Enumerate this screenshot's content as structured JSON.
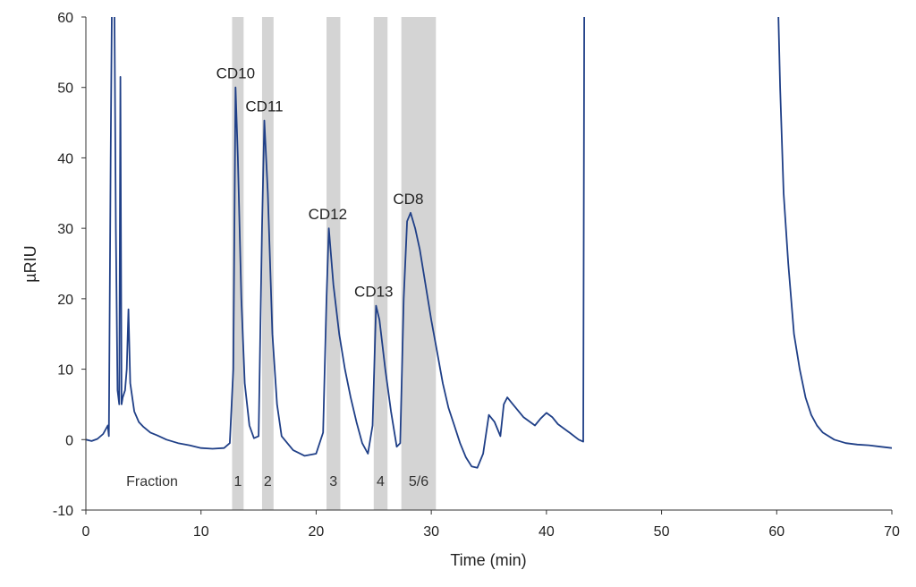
{
  "chart_data": {
    "type": "line",
    "title": "",
    "xlabel": "Time (min)",
    "ylabel": "µRIU",
    "xlim": [
      0,
      70
    ],
    "ylim": [
      -10,
      60
    ],
    "xticks": [
      0,
      10,
      20,
      30,
      40,
      50,
      60,
      70
    ],
    "yticks": [
      -10,
      0,
      10,
      20,
      30,
      40,
      50,
      60
    ],
    "grid": false,
    "series_color": "#1f3f87",
    "shade_color": "#d4d4d4",
    "fraction_caption": "Fraction",
    "fractions": [
      {
        "label": "1",
        "x_start": 12.7,
        "x_end": 13.7
      },
      {
        "label": "2",
        "x_start": 15.3,
        "x_end": 16.3
      },
      {
        "label": "3",
        "x_start": 20.9,
        "x_end": 22.1
      },
      {
        "label": "4",
        "x_start": 25.0,
        "x_end": 26.2
      },
      {
        "label": "5/6",
        "x_start": 27.4,
        "x_end": 30.4
      }
    ],
    "annotations": [
      {
        "text": "CD10",
        "x": 13.0,
        "y": 50.0
      },
      {
        "text": "CD11",
        "x": 15.5,
        "y": 45.3
      },
      {
        "text": "CD12",
        "x": 21.0,
        "y": 30.0
      },
      {
        "text": "CD13",
        "x": 25.0,
        "y": 19.0
      },
      {
        "text": "CD8",
        "x": 28.0,
        "y": 32.2
      }
    ],
    "series": [
      {
        "points": [
          [
            0.0,
            0.0
          ],
          [
            0.5,
            -0.2
          ],
          [
            1.0,
            0.1
          ],
          [
            1.5,
            0.8
          ],
          [
            1.9,
            2.0
          ],
          [
            2.0,
            0.5
          ],
          [
            2.15,
            40.0
          ],
          [
            2.3,
            70.0
          ],
          [
            2.45,
            70.0
          ],
          [
            2.6,
            30.0
          ],
          [
            2.75,
            7.0
          ],
          [
            2.9,
            5.0
          ],
          [
            3.0,
            51.5
          ],
          [
            3.1,
            5.0
          ],
          [
            3.2,
            6.0
          ],
          [
            3.4,
            7.0
          ],
          [
            3.55,
            10.0
          ],
          [
            3.7,
            18.5
          ],
          [
            3.85,
            8.0
          ],
          [
            4.2,
            4.0
          ],
          [
            4.6,
            2.5
          ],
          [
            5.0,
            1.8
          ],
          [
            5.6,
            1.0
          ],
          [
            6.2,
            0.6
          ],
          [
            7.0,
            0.0
          ],
          [
            8.0,
            -0.5
          ],
          [
            9.0,
            -0.8
          ],
          [
            10.0,
            -1.2
          ],
          [
            11.0,
            -1.3
          ],
          [
            12.0,
            -1.2
          ],
          [
            12.5,
            -0.5
          ],
          [
            12.8,
            10.0
          ],
          [
            13.0,
            50.0
          ],
          [
            13.2,
            40.0
          ],
          [
            13.5,
            20.0
          ],
          [
            13.8,
            8.0
          ],
          [
            14.2,
            2.0
          ],
          [
            14.6,
            0.2
          ],
          [
            15.0,
            0.5
          ],
          [
            15.3,
            30.0
          ],
          [
            15.5,
            45.3
          ],
          [
            15.8,
            35.0
          ],
          [
            16.2,
            15.0
          ],
          [
            16.6,
            5.0
          ],
          [
            17.0,
            0.5
          ],
          [
            18.0,
            -1.5
          ],
          [
            19.0,
            -2.3
          ],
          [
            20.0,
            -2.0
          ],
          [
            20.6,
            1.0
          ],
          [
            20.9,
            20.0
          ],
          [
            21.1,
            30.0
          ],
          [
            21.5,
            22.0
          ],
          [
            22.0,
            15.0
          ],
          [
            22.5,
            10.0
          ],
          [
            23.0,
            6.0
          ],
          [
            23.5,
            2.5
          ],
          [
            24.0,
            -0.5
          ],
          [
            24.5,
            -2.0
          ],
          [
            24.9,
            2.0
          ],
          [
            25.2,
            19.0
          ],
          [
            25.5,
            17.0
          ],
          [
            26.0,
            10.0
          ],
          [
            26.5,
            4.0
          ],
          [
            27.0,
            -1.0
          ],
          [
            27.3,
            -0.5
          ],
          [
            27.6,
            20.0
          ],
          [
            27.9,
            31.0
          ],
          [
            28.2,
            32.2
          ],
          [
            28.6,
            30.0
          ],
          [
            29.0,
            27.0
          ],
          [
            29.5,
            22.0
          ],
          [
            30.0,
            17.0
          ],
          [
            30.5,
            12.5
          ],
          [
            31.0,
            8.0
          ],
          [
            31.5,
            4.5
          ],
          [
            32.0,
            2.0
          ],
          [
            32.5,
            -0.5
          ],
          [
            33.0,
            -2.5
          ],
          [
            33.5,
            -3.8
          ],
          [
            34.0,
            -4.0
          ],
          [
            34.5,
            -2.0
          ],
          [
            35.0,
            3.5
          ],
          [
            35.5,
            2.5
          ],
          [
            36.0,
            0.5
          ],
          [
            36.3,
            5.0
          ],
          [
            36.6,
            6.0
          ],
          [
            37.0,
            5.2
          ],
          [
            38.0,
            3.2
          ],
          [
            39.0,
            2.0
          ],
          [
            39.5,
            3.0
          ],
          [
            40.0,
            3.8
          ],
          [
            40.5,
            3.2
          ],
          [
            41.0,
            2.2
          ],
          [
            42.0,
            1.0
          ],
          [
            42.8,
            0.0
          ],
          [
            43.2,
            -0.3
          ],
          [
            43.3,
            70.0
          ]
        ]
      },
      {
        "points": [
          [
            60.0,
            70.0
          ],
          [
            60.3,
            50.0
          ],
          [
            60.6,
            35.0
          ],
          [
            61.0,
            25.0
          ],
          [
            61.5,
            15.0
          ],
          [
            62.0,
            10.0
          ],
          [
            62.5,
            6.0
          ],
          [
            63.0,
            3.5
          ],
          [
            63.5,
            2.0
          ],
          [
            64.0,
            1.0
          ],
          [
            65.0,
            0.0
          ],
          [
            66.0,
            -0.5
          ],
          [
            67.0,
            -0.7
          ],
          [
            68.0,
            -0.8
          ],
          [
            69.0,
            -1.0
          ],
          [
            70.0,
            -1.2
          ]
        ]
      }
    ]
  }
}
